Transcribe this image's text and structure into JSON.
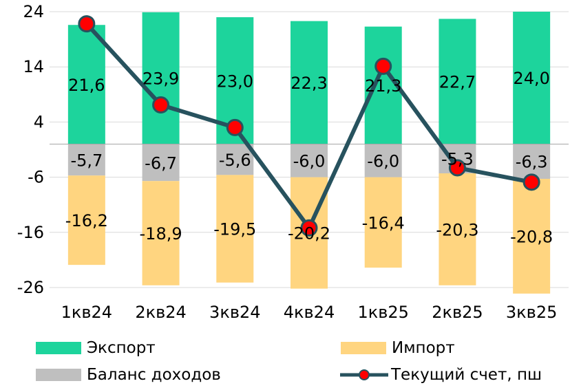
{
  "chart_data": {
    "type": "bar",
    "stacked": true,
    "categories": [
      "1кв24",
      "2кв24",
      "3кв24",
      "4кв24",
      "1кв25",
      "2кв25",
      "3кв25"
    ],
    "series": [
      {
        "name": "Экспорт",
        "kind": "bar",
        "color": "#1dd49c",
        "values": [
          21.6,
          23.9,
          23.0,
          22.3,
          21.3,
          22.7,
          24.0
        ],
        "labels": [
          "21,6",
          "23,9",
          "23,0",
          "22,3",
          "21,3",
          "22,7",
          "24,0"
        ]
      },
      {
        "name": "Баланс доходов",
        "kind": "bar",
        "color": "#bfbfbf",
        "values": [
          -5.7,
          -6.7,
          -5.6,
          -6.0,
          -6.0,
          -5.3,
          -6.3
        ],
        "labels": [
          "-5,7",
          "-6,7",
          "-5,6",
          "-6,0",
          "-6,0",
          "-5,3",
          "-6,3"
        ]
      },
      {
        "name": "Импорт",
        "kind": "bar",
        "color": "#ffd580",
        "values": [
          -16.2,
          -18.9,
          -19.5,
          -20.2,
          -16.4,
          -20.3,
          -20.8
        ],
        "labels": [
          "-16,2",
          "-18,9",
          "-19,5",
          "-20,2",
          "-16,4",
          "-20,3",
          "-20,8"
        ]
      },
      {
        "name": "Текущий счет, пш",
        "kind": "line",
        "color": "#27525e",
        "marker_color": "#ff0000",
        "values": [
          21.8,
          7.1,
          3.0,
          -15.2,
          14.1,
          -4.3,
          -6.9
        ]
      }
    ],
    "yticks": [
      "24",
      "14",
      "4",
      "-6",
      "-16",
      "-26"
    ],
    "ytick_values": [
      24,
      14,
      4,
      -6,
      -16,
      -26
    ],
    "ylim": [
      -26,
      24
    ],
    "grid": true,
    "legend_position": "bottom"
  }
}
